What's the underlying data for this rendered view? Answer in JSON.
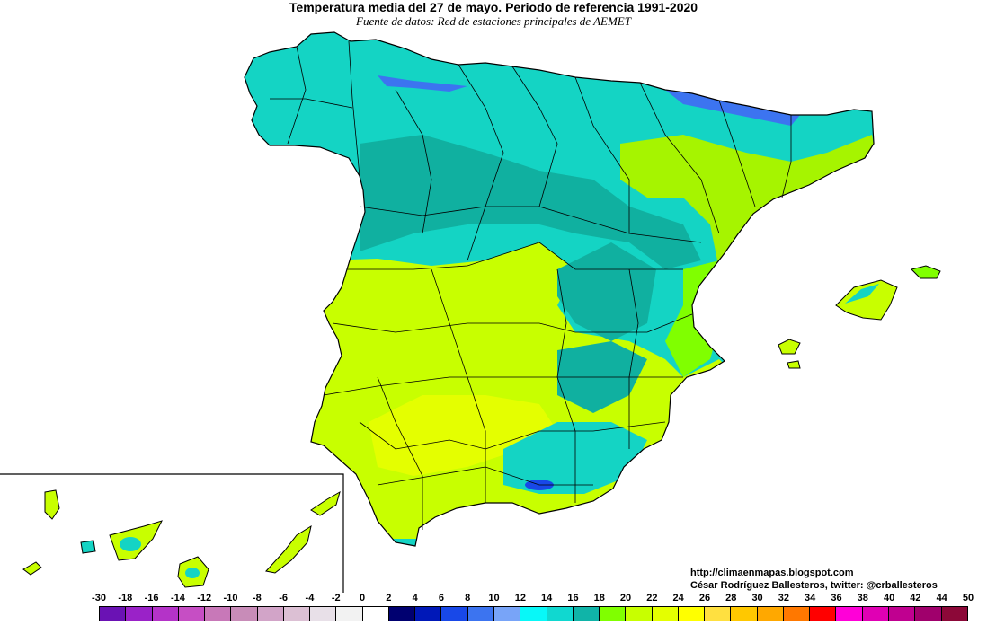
{
  "title": "Temperatura media del 27 de mayo. Periodo de referencia 1991-2020",
  "subtitle": "Fuente de datos: Red de estaciones principales de AEMET",
  "credits": {
    "line1": "http://climaenmapas.blogspot.com",
    "line2": "César Rodríguez Ballesteros, twitter: @crballesteros"
  },
  "legend": {
    "labels": [
      "-30",
      "-18",
      "-16",
      "-14",
      "-12",
      "-10",
      "-8",
      "-6",
      "-4",
      "-2",
      "0",
      "2",
      "4",
      "6",
      "8",
      "10",
      "12",
      "14",
      "16",
      "18",
      "20",
      "22",
      "24",
      "26",
      "28",
      "30",
      "32",
      "34",
      "36",
      "38",
      "40",
      "42",
      "44",
      "50"
    ],
    "colors": [
      "#6a12b4",
      "#9a22c8",
      "#b433c8",
      "#c64ec4",
      "#c878b8",
      "#c88cb8",
      "#d2a4c8",
      "#dcc0d4",
      "#e8e0e8",
      "#f2f2f2",
      "#ffffff",
      "#000070",
      "#0018b8",
      "#1848e8",
      "#3c74f0",
      "#78a4f8",
      "#08f8f8",
      "#10d8d0",
      "#10b4a8",
      "#80ff00",
      "#c8ff00",
      "#e4ff00",
      "#ffff00",
      "#ffe040",
      "#ffc800",
      "#ffa800",
      "#ff7800",
      "#ff0000",
      "#ff00d8",
      "#e000b4",
      "#c00090",
      "#a0006c",
      "#8c0838"
    ],
    "marker_value": "15"
  },
  "regions_colors": {
    "cool": "#14d4c4",
    "cool_dark": "#10b0a0",
    "warm": "#c8ff00",
    "warm_light": "#e4ff00",
    "green": "#80ff00",
    "cold": "#3c74f0",
    "coldest": "#6a12b4"
  }
}
